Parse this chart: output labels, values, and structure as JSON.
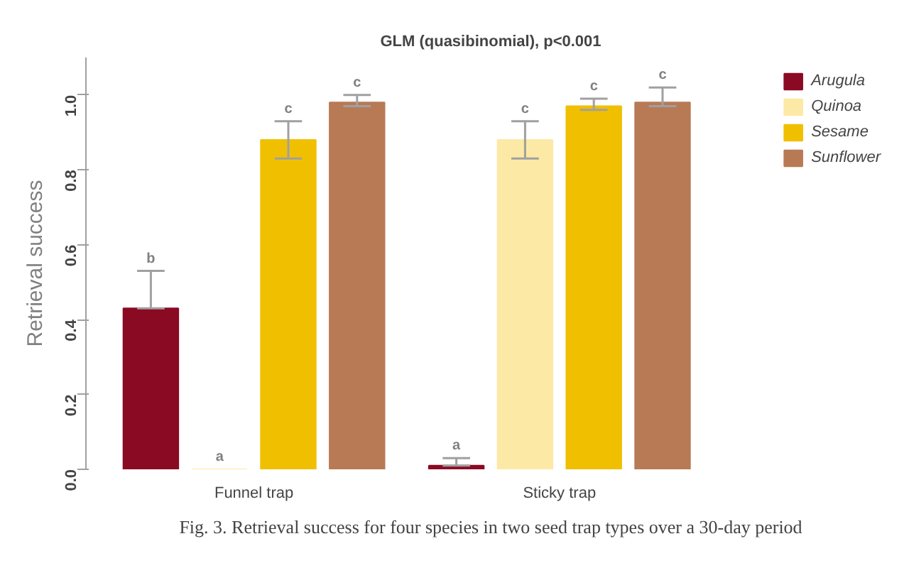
{
  "chart_data": {
    "type": "bar",
    "title": "GLM (quasibinomial), p<0.001",
    "ylabel": "Retrieval success",
    "categories": [
      "Funnel trap",
      "Sticky trap"
    ],
    "series": [
      {
        "name": "Arugula",
        "color": "#8b0a23",
        "values": [
          0.43,
          0.01
        ],
        "errors": [
          [
            0.43,
            0.53
          ],
          [
            0.01,
            0.03
          ]
        ]
      },
      {
        "name": "Quinoa",
        "color": "#fde9a6",
        "values": [
          0.0,
          0.88
        ],
        "errors": [
          null,
          [
            0.83,
            0.93
          ]
        ]
      },
      {
        "name": "Sesame",
        "color": "#f0c000",
        "values": [
          0.88,
          0.97
        ],
        "errors": [
          [
            0.83,
            0.93
          ],
          [
            0.96,
            0.99
          ]
        ]
      },
      {
        "name": "Sunflower",
        "color": "#b87a55",
        "values": [
          0.98,
          0.98
        ],
        "errors": [
          [
            0.97,
            1.0
          ],
          [
            0.97,
            1.02
          ]
        ]
      }
    ],
    "ylim": [
      0,
      1.1
    ],
    "yticks": [
      {
        "value": 0,
        "label": "0.0"
      },
      0.2,
      0.4,
      0.6,
      0.8,
      {
        "value": 1,
        "label": "1.0"
      }
    ],
    "grid": false,
    "legend": "top right",
    "annotations": [
      "b",
      "a",
      "c",
      "c",
      "a",
      "c",
      "c",
      "c",
      "Fig. 3. Retrieval success for four species in two seed trap types over a 30-day period"
    ]
  }
}
